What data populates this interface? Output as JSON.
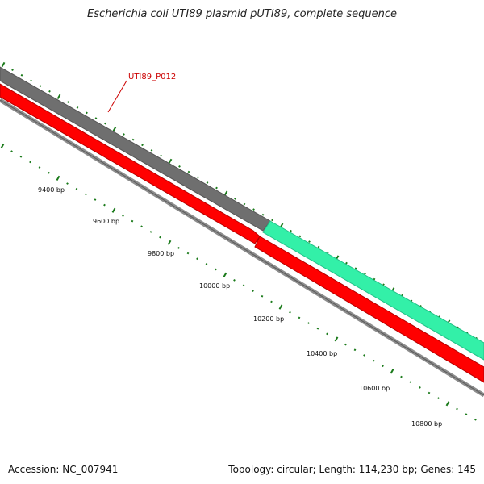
{
  "title": "Escherichia coli UTI89 plasmid pUTI89, complete sequence",
  "footer": {
    "accession": "Accession: NC_007941",
    "stats": "Topology: circular; Length: 114,230 bp; Genes: 145"
  },
  "gene_label": "UTI89_P012",
  "tick_labels": [
    {
      "text": "9400 bp"
    },
    {
      "text": "9600 bp"
    },
    {
      "text": "9800 bp"
    },
    {
      "text": "10000 bp"
    },
    {
      "text": "10200 bp"
    },
    {
      "text": "10400 bp"
    },
    {
      "text": "10600 bp"
    },
    {
      "text": "10800 bp"
    }
  ],
  "colors": {
    "forward_track_gray": "#6f6f6f",
    "cds_green": "#33f0a8",
    "cds_red": "#ff0000",
    "backbone": "#8c8c8c",
    "tick": "#1a7a1a",
    "gene_label": "#cc0000"
  }
}
